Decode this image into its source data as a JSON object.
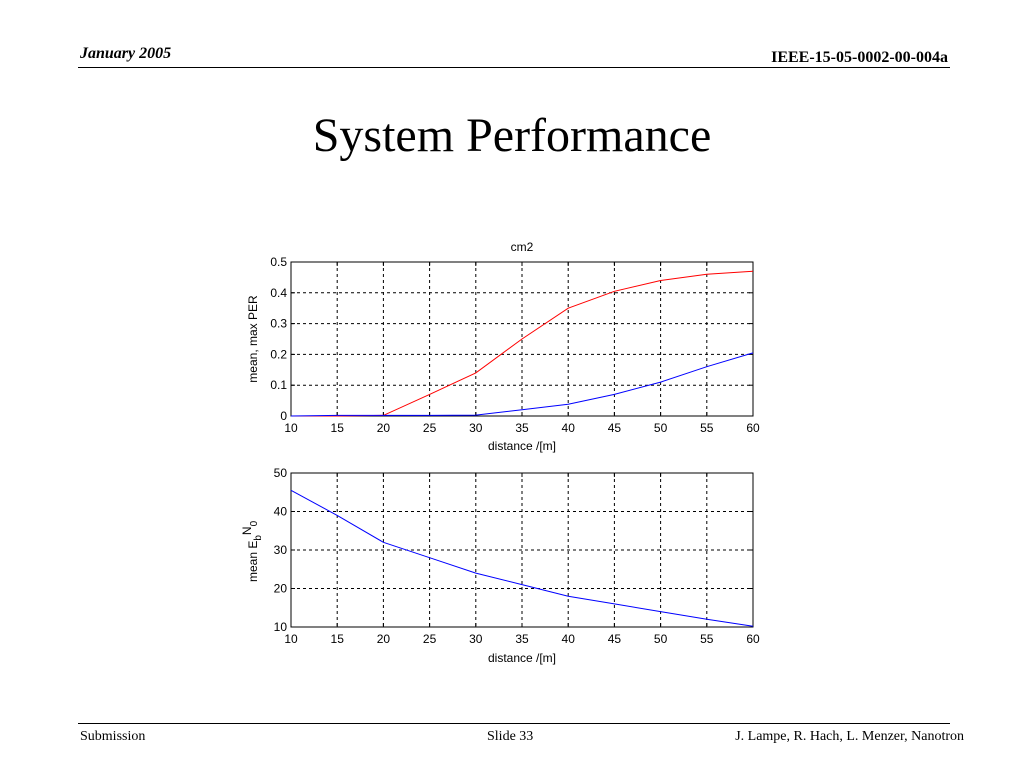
{
  "header": {
    "date": "January 2005",
    "doc_id": "IEEE-15-05-0002-00-004a"
  },
  "slide": {
    "title": "System Performance"
  },
  "footer": {
    "left": "Submission",
    "center": "Slide 33",
    "right": "J. Lampe, R. Hach, L. Menzer, Nanotron"
  },
  "chart_data": [
    {
      "type": "line",
      "title": "cm2",
      "xlabel": "distance /[m]",
      "ylabel": "mean, max PER",
      "xlim": [
        10,
        60
      ],
      "ylim": [
        0,
        0.5
      ],
      "xticks": [
        10,
        15,
        20,
        25,
        30,
        35,
        40,
        45,
        50,
        55,
        60
      ],
      "yticks": [
        0,
        0.1,
        0.2,
        0.3,
        0.4,
        0.5
      ],
      "grid": true,
      "series": [
        {
          "color": "#ff0000",
          "x": [
            10,
            15,
            20,
            25,
            30,
            35,
            40,
            45,
            50,
            55,
            60
          ],
          "y": [
            0,
            0,
            0.002,
            0.07,
            0.14,
            0.25,
            0.35,
            0.405,
            0.44,
            0.46,
            0.47
          ]
        },
        {
          "color": "#0000ff",
          "x": [
            10,
            15,
            20,
            25,
            30,
            35,
            40,
            45,
            50,
            55,
            60
          ],
          "y": [
            0,
            0.002,
            0.002,
            0.002,
            0.003,
            0.02,
            0.038,
            0.07,
            0.11,
            0.16,
            0.205
          ]
        }
      ]
    },
    {
      "type": "line",
      "title": "",
      "xlabel": "distance /[m]",
      "ylabel": "mean E",
      "ylabel_sub_b": "b",
      "ylabel_N": "N",
      "ylabel_sub_0": "0",
      "xlim": [
        10,
        60
      ],
      "ylim": [
        10,
        50
      ],
      "xticks": [
        10,
        15,
        20,
        25,
        30,
        35,
        40,
        45,
        50,
        55,
        60
      ],
      "yticks": [
        10,
        20,
        30,
        40,
        50
      ],
      "grid": true,
      "series": [
        {
          "color": "#0000ff",
          "x": [
            10,
            15,
            20,
            25,
            30,
            35,
            40,
            45,
            50,
            55,
            60
          ],
          "y": [
            45.5,
            39,
            32,
            28,
            24,
            21,
            18,
            16,
            14,
            12,
            10.2
          ]
        }
      ]
    }
  ]
}
